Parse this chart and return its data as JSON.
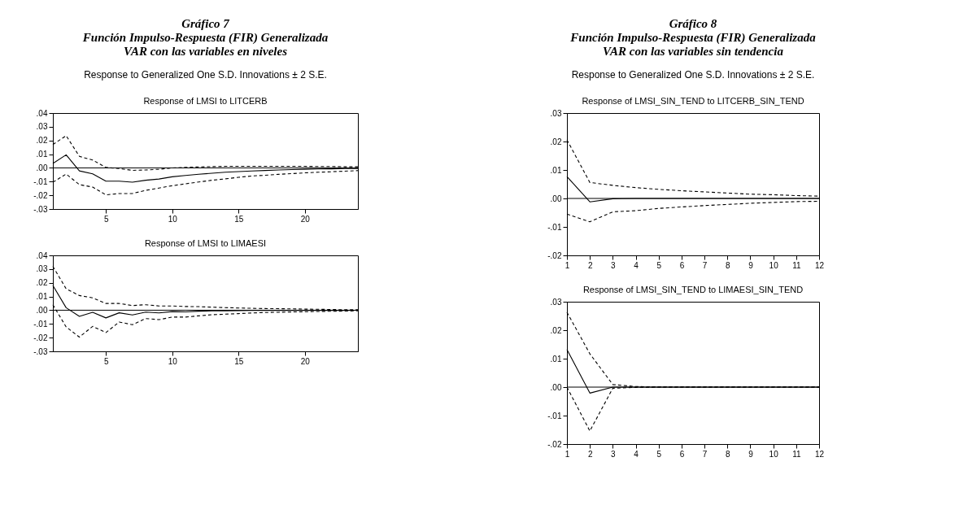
{
  "chart_data": [
    {
      "type": "line",
      "title": "Response of LMSI to LITCERB",
      "subtitle": "Response to Generalized One S.D. Innovations ± 2 S.E.",
      "annotations": [
        "Gráfico 7",
        "Función Impulso-Respuesta (FIR) Generalizada",
        "VAR con las variables en niveles"
      ],
      "x": [
        1,
        2,
        3,
        4,
        5,
        6,
        7,
        8,
        9,
        10,
        11,
        12,
        13,
        14,
        15,
        16,
        17,
        18,
        19,
        20,
        21,
        22,
        23,
        24
      ],
      "series": [
        {
          "color": "#000000",
          "line_style": "solid",
          "values": [
            0.0032,
            0.0095,
            -0.0022,
            -0.0043,
            -0.0097,
            -0.0097,
            -0.0104,
            -0.009,
            -0.0081,
            -0.0065,
            -0.0055,
            -0.0046,
            -0.0039,
            -0.0032,
            -0.0027,
            -0.0023,
            -0.0019,
            -0.0015,
            -0.0012,
            -0.001,
            -0.0008,
            -0.0007,
            -0.0005,
            -0.0004
          ]
        },
        {
          "color": "#000000",
          "line_style": "dashed",
          "values": [
            0.017,
            0.0235,
            0.0084,
            0.0057,
            0.0003,
            -0.0005,
            -0.0018,
            -0.0015,
            -0.001,
            -0.0001,
            0.0004,
            0.0007,
            0.0009,
            0.0011,
            0.0011,
            0.0011,
            0.0011,
            0.0011,
            0.0011,
            0.0011,
            0.001,
            0.001,
            0.0008,
            0.0008
          ]
        },
        {
          "color": "#000000",
          "line_style": "dashed",
          "values": [
            -0.0105,
            -0.0045,
            -0.0122,
            -0.014,
            -0.0197,
            -0.0187,
            -0.0187,
            -0.0164,
            -0.0147,
            -0.013,
            -0.0116,
            -0.0103,
            -0.009,
            -0.008,
            -0.0069,
            -0.0059,
            -0.0054,
            -0.0047,
            -0.0042,
            -0.0036,
            -0.0032,
            -0.0028,
            -0.0024,
            -0.002
          ]
        }
      ],
      "xlim": [
        1,
        24
      ],
      "xticks": [
        5,
        10,
        15,
        20
      ],
      "ylim": [
        -0.03,
        0.04
      ],
      "yticks": [
        {
          "value": -0.03,
          "label": "-.03"
        },
        {
          "value": -0.02,
          "label": "-.02"
        },
        {
          "value": -0.01,
          "label": "-.01"
        },
        {
          "value": 0,
          "label": ".00"
        },
        {
          "value": 0.01,
          "label": ".01"
        },
        {
          "value": 0.02,
          "label": ".02"
        },
        {
          "value": 0.03,
          "label": ".03"
        },
        {
          "value": 0.04,
          "label": ".04"
        }
      ],
      "ref_lines": [
        {
          "axis": "y",
          "value": 0,
          "color": "#000000"
        }
      ],
      "grid": false
    },
    {
      "type": "line",
      "title": "Response of LMSI to LIMAESI",
      "x": [
        1,
        2,
        3,
        4,
        5,
        6,
        7,
        8,
        9,
        10,
        11,
        12,
        13,
        14,
        15,
        16,
        17,
        18,
        19,
        20,
        21,
        22,
        23,
        24
      ],
      "series": [
        {
          "color": "#000000",
          "line_style": "solid",
          "values": [
            0.018,
            0.0018,
            -0.0045,
            -0.0015,
            -0.0056,
            -0.0019,
            -0.0035,
            -0.0014,
            -0.002,
            -0.001,
            -0.0012,
            -0.0007,
            -0.0005,
            -0.0004,
            -0.0003,
            -0.0002,
            -0.0001,
            -0.0001,
            -0.0001,
            -0.0001,
            -0.0001,
            -0.0001,
            -0.0001,
            0
          ]
        },
        {
          "color": "#000000",
          "line_style": "dashed",
          "values": [
            0.032,
            0.0156,
            0.0107,
            0.009,
            0.0049,
            0.0049,
            0.0034,
            0.004,
            0.0031,
            0.0031,
            0.0027,
            0.0026,
            0.0022,
            0.0019,
            0.0016,
            0.0014,
            0.0012,
            0.0011,
            0.001,
            0.0008,
            0.0007,
            0.0005,
            0.0004,
            0.0003
          ]
        },
        {
          "color": "#000000",
          "line_style": "dashed",
          "values": [
            0.004,
            -0.0122,
            -0.0196,
            -0.0118,
            -0.0163,
            -0.0086,
            -0.0106,
            -0.0061,
            -0.0069,
            -0.005,
            -0.005,
            -0.0041,
            -0.0033,
            -0.0029,
            -0.0025,
            -0.002,
            -0.0017,
            -0.0015,
            -0.0013,
            -0.0011,
            -0.0009,
            -0.0008,
            -0.0006,
            -0.0005
          ]
        }
      ],
      "xlim": [
        1,
        24
      ],
      "xticks": [
        5,
        10,
        15,
        20
      ],
      "ylim": [
        -0.03,
        0.04
      ],
      "yticks": [
        {
          "value": -0.03,
          "label": "-.03"
        },
        {
          "value": -0.02,
          "label": "-.02"
        },
        {
          "value": -0.01,
          "label": "-.01"
        },
        {
          "value": 0,
          "label": ".00"
        },
        {
          "value": 0.01,
          "label": ".01"
        },
        {
          "value": 0.02,
          "label": ".02"
        },
        {
          "value": 0.03,
          "label": ".03"
        },
        {
          "value": 0.04,
          "label": ".04"
        }
      ],
      "ref_lines": [
        {
          "axis": "y",
          "value": 0,
          "color": "#000000"
        }
      ],
      "grid": false
    },
    {
      "type": "line",
      "title": "Response of LMSI_SIN_TEND to LITCERB_SIN_TEND",
      "subtitle": "Response to Generalized One S.D. Innovations ± 2 S.E.",
      "annotations": [
        "Gráfico 8",
        "Función Impulso-Respuesta (FIR) Generalizada",
        "VAR con las variables sin tendencia"
      ],
      "x": [
        1,
        2,
        3,
        4,
        5,
        6,
        7,
        8,
        9,
        10,
        11,
        12
      ],
      "series": [
        {
          "color": "#000000",
          "line_style": "solid",
          "values": [
            0.0077,
            -0.0012,
            -0.0001,
            0,
            0,
            0,
            0,
            0,
            0,
            0,
            0,
            0
          ]
        },
        {
          "color": "#000000",
          "line_style": "dashed",
          "values": [
            0.0206,
            0.0056,
            0.0046,
            0.0038,
            0.0032,
            0.0027,
            0.0023,
            0.0019,
            0.0015,
            0.0013,
            0.001,
            0.0008
          ]
        },
        {
          "color": "#000000",
          "line_style": "dashed",
          "values": [
            -0.0055,
            -0.0082,
            -0.0047,
            -0.0043,
            -0.0035,
            -0.003,
            -0.0025,
            -0.0021,
            -0.0017,
            -0.0014,
            -0.0011,
            -0.001
          ]
        }
      ],
      "xlim": [
        1,
        12
      ],
      "xticks": [
        1,
        2,
        3,
        4,
        5,
        6,
        7,
        8,
        9,
        10,
        11,
        12
      ],
      "ylim": [
        -0.02,
        0.03
      ],
      "yticks": [
        {
          "value": -0.02,
          "label": "-.02"
        },
        {
          "value": -0.01,
          "label": "-.01"
        },
        {
          "value": 0,
          "label": ".00"
        },
        {
          "value": 0.01,
          "label": ".01"
        },
        {
          "value": 0.02,
          "label": ".02"
        },
        {
          "value": 0.03,
          "label": ".03"
        }
      ],
      "ref_lines": [
        {
          "axis": "y",
          "value": 0,
          "color": "#000000"
        }
      ],
      "grid": false
    },
    {
      "type": "line",
      "title": "Response of LMSI_SIN_TEND to LIMAESI_SIN_TEND",
      "x": [
        1,
        2,
        3,
        4,
        5,
        6,
        7,
        8,
        9,
        10,
        11,
        12
      ],
      "series": [
        {
          "color": "#000000",
          "line_style": "solid",
          "values": [
            0.0132,
            -0.0021,
            0,
            0,
            0,
            0,
            0,
            0,
            0,
            0,
            0,
            0
          ]
        },
        {
          "color": "#000000",
          "line_style": "dashed",
          "values": [
            0.0263,
            0.0117,
            0.0009,
            0.0002,
            0.0001,
            0.0001,
            0.0001,
            0.0001,
            0.0001,
            0.0001,
            0.0001,
            0.0001
          ]
        },
        {
          "color": "#000000",
          "line_style": "dashed",
          "values": [
            0,
            -0.0154,
            -0.0004,
            -0.0001,
            0,
            0,
            0,
            0,
            0,
            0,
            0,
            0
          ]
        }
      ],
      "xlim": [
        1,
        12
      ],
      "xticks": [
        1,
        2,
        3,
        4,
        5,
        6,
        7,
        8,
        9,
        10,
        11,
        12
      ],
      "ylim": [
        -0.02,
        0.03
      ],
      "yticks": [
        {
          "value": -0.02,
          "label": "-.02"
        },
        {
          "value": -0.01,
          "label": "-.01"
        },
        {
          "value": 0,
          "label": ".00"
        },
        {
          "value": 0.01,
          "label": ".01"
        },
        {
          "value": 0.02,
          "label": ".02"
        },
        {
          "value": 0.03,
          "label": ".03"
        }
      ],
      "ref_lines": [
        {
          "axis": "y",
          "value": 0,
          "color": "#000000"
        }
      ],
      "grid": false
    }
  ]
}
